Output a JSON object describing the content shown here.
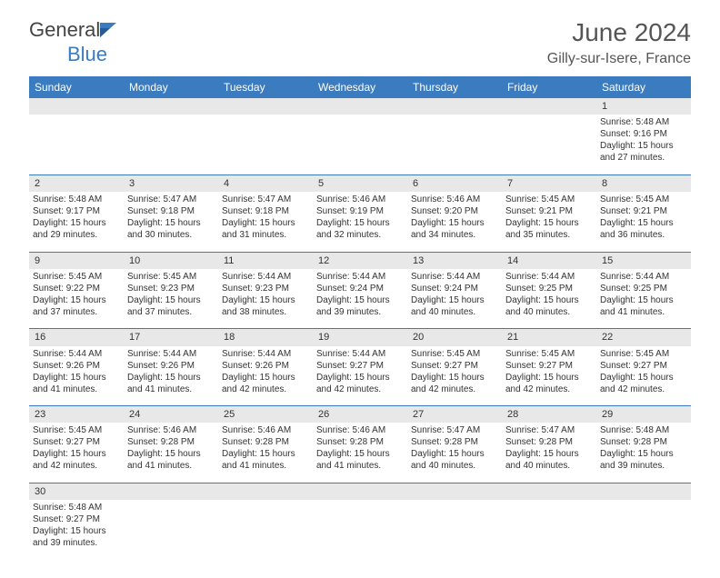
{
  "brand": {
    "name1": "General",
    "name2": "Blue"
  },
  "title": "June 2024",
  "location": "Gilly-sur-Isere, France",
  "colors": {
    "accent": "#3b7bbf",
    "dayHeaderBg": "#e8e8e8",
    "text": "#333333",
    "titleText": "#555555"
  },
  "weekdays": [
    "Sunday",
    "Monday",
    "Tuesday",
    "Wednesday",
    "Thursday",
    "Friday",
    "Saturday"
  ],
  "weeks": [
    [
      null,
      null,
      null,
      null,
      null,
      null,
      {
        "d": "1",
        "sr": "Sunrise: 5:48 AM",
        "ss": "Sunset: 9:16 PM",
        "dl1": "Daylight: 15 hours",
        "dl2": "and 27 minutes."
      }
    ],
    [
      {
        "d": "2",
        "sr": "Sunrise: 5:48 AM",
        "ss": "Sunset: 9:17 PM",
        "dl1": "Daylight: 15 hours",
        "dl2": "and 29 minutes."
      },
      {
        "d": "3",
        "sr": "Sunrise: 5:47 AM",
        "ss": "Sunset: 9:18 PM",
        "dl1": "Daylight: 15 hours",
        "dl2": "and 30 minutes."
      },
      {
        "d": "4",
        "sr": "Sunrise: 5:47 AM",
        "ss": "Sunset: 9:18 PM",
        "dl1": "Daylight: 15 hours",
        "dl2": "and 31 minutes."
      },
      {
        "d": "5",
        "sr": "Sunrise: 5:46 AM",
        "ss": "Sunset: 9:19 PM",
        "dl1": "Daylight: 15 hours",
        "dl2": "and 32 minutes."
      },
      {
        "d": "6",
        "sr": "Sunrise: 5:46 AM",
        "ss": "Sunset: 9:20 PM",
        "dl1": "Daylight: 15 hours",
        "dl2": "and 34 minutes."
      },
      {
        "d": "7",
        "sr": "Sunrise: 5:45 AM",
        "ss": "Sunset: 9:21 PM",
        "dl1": "Daylight: 15 hours",
        "dl2": "and 35 minutes."
      },
      {
        "d": "8",
        "sr": "Sunrise: 5:45 AM",
        "ss": "Sunset: 9:21 PM",
        "dl1": "Daylight: 15 hours",
        "dl2": "and 36 minutes."
      }
    ],
    [
      {
        "d": "9",
        "sr": "Sunrise: 5:45 AM",
        "ss": "Sunset: 9:22 PM",
        "dl1": "Daylight: 15 hours",
        "dl2": "and 37 minutes."
      },
      {
        "d": "10",
        "sr": "Sunrise: 5:45 AM",
        "ss": "Sunset: 9:23 PM",
        "dl1": "Daylight: 15 hours",
        "dl2": "and 37 minutes."
      },
      {
        "d": "11",
        "sr": "Sunrise: 5:44 AM",
        "ss": "Sunset: 9:23 PM",
        "dl1": "Daylight: 15 hours",
        "dl2": "and 38 minutes."
      },
      {
        "d": "12",
        "sr": "Sunrise: 5:44 AM",
        "ss": "Sunset: 9:24 PM",
        "dl1": "Daylight: 15 hours",
        "dl2": "and 39 minutes."
      },
      {
        "d": "13",
        "sr": "Sunrise: 5:44 AM",
        "ss": "Sunset: 9:24 PM",
        "dl1": "Daylight: 15 hours",
        "dl2": "and 40 minutes."
      },
      {
        "d": "14",
        "sr": "Sunrise: 5:44 AM",
        "ss": "Sunset: 9:25 PM",
        "dl1": "Daylight: 15 hours",
        "dl2": "and 40 minutes."
      },
      {
        "d": "15",
        "sr": "Sunrise: 5:44 AM",
        "ss": "Sunset: 9:25 PM",
        "dl1": "Daylight: 15 hours",
        "dl2": "and 41 minutes."
      }
    ],
    [
      {
        "d": "16",
        "sr": "Sunrise: 5:44 AM",
        "ss": "Sunset: 9:26 PM",
        "dl1": "Daylight: 15 hours",
        "dl2": "and 41 minutes."
      },
      {
        "d": "17",
        "sr": "Sunrise: 5:44 AM",
        "ss": "Sunset: 9:26 PM",
        "dl1": "Daylight: 15 hours",
        "dl2": "and 41 minutes."
      },
      {
        "d": "18",
        "sr": "Sunrise: 5:44 AM",
        "ss": "Sunset: 9:26 PM",
        "dl1": "Daylight: 15 hours",
        "dl2": "and 42 minutes."
      },
      {
        "d": "19",
        "sr": "Sunrise: 5:44 AM",
        "ss": "Sunset: 9:27 PM",
        "dl1": "Daylight: 15 hours",
        "dl2": "and 42 minutes."
      },
      {
        "d": "20",
        "sr": "Sunrise: 5:45 AM",
        "ss": "Sunset: 9:27 PM",
        "dl1": "Daylight: 15 hours",
        "dl2": "and 42 minutes."
      },
      {
        "d": "21",
        "sr": "Sunrise: 5:45 AM",
        "ss": "Sunset: 9:27 PM",
        "dl1": "Daylight: 15 hours",
        "dl2": "and 42 minutes."
      },
      {
        "d": "22",
        "sr": "Sunrise: 5:45 AM",
        "ss": "Sunset: 9:27 PM",
        "dl1": "Daylight: 15 hours",
        "dl2": "and 42 minutes."
      }
    ],
    [
      {
        "d": "23",
        "sr": "Sunrise: 5:45 AM",
        "ss": "Sunset: 9:27 PM",
        "dl1": "Daylight: 15 hours",
        "dl2": "and 42 minutes."
      },
      {
        "d": "24",
        "sr": "Sunrise: 5:46 AM",
        "ss": "Sunset: 9:28 PM",
        "dl1": "Daylight: 15 hours",
        "dl2": "and 41 minutes."
      },
      {
        "d": "25",
        "sr": "Sunrise: 5:46 AM",
        "ss": "Sunset: 9:28 PM",
        "dl1": "Daylight: 15 hours",
        "dl2": "and 41 minutes."
      },
      {
        "d": "26",
        "sr": "Sunrise: 5:46 AM",
        "ss": "Sunset: 9:28 PM",
        "dl1": "Daylight: 15 hours",
        "dl2": "and 41 minutes."
      },
      {
        "d": "27",
        "sr": "Sunrise: 5:47 AM",
        "ss": "Sunset: 9:28 PM",
        "dl1": "Daylight: 15 hours",
        "dl2": "and 40 minutes."
      },
      {
        "d": "28",
        "sr": "Sunrise: 5:47 AM",
        "ss": "Sunset: 9:28 PM",
        "dl1": "Daylight: 15 hours",
        "dl2": "and 40 minutes."
      },
      {
        "d": "29",
        "sr": "Sunrise: 5:48 AM",
        "ss": "Sunset: 9:28 PM",
        "dl1": "Daylight: 15 hours",
        "dl2": "and 39 minutes."
      }
    ],
    [
      {
        "d": "30",
        "sr": "Sunrise: 5:48 AM",
        "ss": "Sunset: 9:27 PM",
        "dl1": "Daylight: 15 hours",
        "dl2": "and 39 minutes."
      },
      null,
      null,
      null,
      null,
      null,
      null
    ]
  ]
}
